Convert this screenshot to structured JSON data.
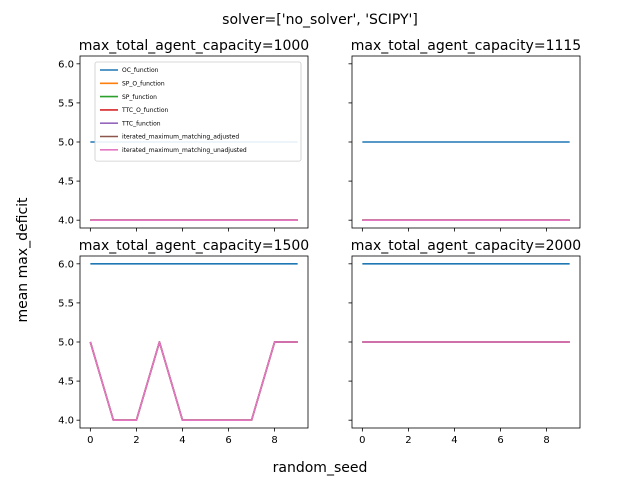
{
  "figure": {
    "suptitle": "solver=['no_solver', 'SCIPY']",
    "xlabel": "random_seed",
    "ylabel": "mean max_deficit"
  },
  "legend": {
    "placement": "upper-left of top-left panel",
    "entries": [
      {
        "name": "OC_function",
        "color": "#1f77b4"
      },
      {
        "name": "SP_O_function",
        "color": "#ff7f0e"
      },
      {
        "name": "SP_function",
        "color": "#2ca02c"
      },
      {
        "name": "TTC_O_function",
        "color": "#d62728"
      },
      {
        "name": "TTC_function",
        "color": "#9467bd"
      },
      {
        "name": "iterated_maximum_matching_adjusted",
        "color": "#8c564b"
      },
      {
        "name": "iterated_maximum_matching_unadjusted",
        "color": "#e377c2"
      }
    ]
  },
  "chart_data": [
    {
      "type": "line",
      "title": "max_total_agent_capacity=1000",
      "x": [
        0,
        1,
        2,
        3,
        4,
        5,
        6,
        7,
        8,
        9
      ],
      "xlim": [
        -0.45,
        9.45
      ],
      "ylim": [
        3.9,
        6.1
      ],
      "yticks": [
        4.0,
        4.5,
        5.0,
        5.5,
        6.0
      ],
      "ytick_labels": [
        "4.0",
        "4.5",
        "5.0",
        "5.5",
        "6.0"
      ],
      "xticks": [
        0,
        2,
        4,
        6,
        8
      ],
      "xtick_labels": [],
      "series": [
        {
          "name": "OC_function",
          "color": "#1f77b4",
          "values": [
            5,
            5,
            5,
            5,
            5,
            5,
            5,
            5,
            5,
            5
          ]
        },
        {
          "name": "SP_O_function",
          "color": "#ff7f0e",
          "values": [
            4,
            4,
            4,
            4,
            4,
            4,
            4,
            4,
            4,
            4
          ]
        },
        {
          "name": "SP_function",
          "color": "#2ca02c",
          "values": [
            4,
            4,
            4,
            4,
            4,
            4,
            4,
            4,
            4,
            4
          ]
        },
        {
          "name": "TTC_O_function",
          "color": "#d62728",
          "values": [
            4,
            4,
            4,
            4,
            4,
            4,
            4,
            4,
            4,
            4
          ]
        },
        {
          "name": "TTC_function",
          "color": "#9467bd",
          "values": [
            4,
            4,
            4,
            4,
            4,
            4,
            4,
            4,
            4,
            4
          ]
        },
        {
          "name": "iterated_maximum_matching_adjusted",
          "color": "#8c564b",
          "values": [
            4,
            4,
            4,
            4,
            4,
            4,
            4,
            4,
            4,
            4
          ]
        },
        {
          "name": "iterated_maximum_matching_unadjusted",
          "color": "#e377c2",
          "values": [
            4,
            4,
            4,
            4,
            4,
            4,
            4,
            4,
            4,
            4
          ]
        }
      ]
    },
    {
      "type": "line",
      "title": "max_total_agent_capacity=1115",
      "x": [
        0,
        1,
        2,
        3,
        4,
        5,
        6,
        7,
        8,
        9
      ],
      "xlim": [
        -0.45,
        9.45
      ],
      "ylim": [
        3.9,
        6.1
      ],
      "yticks": [
        4.0,
        4.5,
        5.0,
        5.5,
        6.0
      ],
      "ytick_labels": [],
      "xticks": [
        0,
        2,
        4,
        6,
        8
      ],
      "xtick_labels": [],
      "series": [
        {
          "name": "OC_function",
          "color": "#1f77b4",
          "values": [
            5,
            5,
            5,
            5,
            5,
            5,
            5,
            5,
            5,
            5
          ]
        },
        {
          "name": "SP_O_function",
          "color": "#ff7f0e",
          "values": [
            4,
            4,
            4,
            4,
            4,
            4,
            4,
            4,
            4,
            4
          ]
        },
        {
          "name": "SP_function",
          "color": "#2ca02c",
          "values": [
            4,
            4,
            4,
            4,
            4,
            4,
            4,
            4,
            4,
            4
          ]
        },
        {
          "name": "TTC_O_function",
          "color": "#d62728",
          "values": [
            4,
            4,
            4,
            4,
            4,
            4,
            4,
            4,
            4,
            4
          ]
        },
        {
          "name": "TTC_function",
          "color": "#9467bd",
          "values": [
            4,
            4,
            4,
            4,
            4,
            4,
            4,
            4,
            4,
            4
          ]
        },
        {
          "name": "iterated_maximum_matching_adjusted",
          "color": "#8c564b",
          "values": [
            4,
            4,
            4,
            4,
            4,
            4,
            4,
            4,
            4,
            4
          ]
        },
        {
          "name": "iterated_maximum_matching_unadjusted",
          "color": "#e377c2",
          "values": [
            4,
            4,
            4,
            4,
            4,
            4,
            4,
            4,
            4,
            4
          ]
        }
      ]
    },
    {
      "type": "line",
      "title": "max_total_agent_capacity=1500",
      "x": [
        0,
        1,
        2,
        3,
        4,
        5,
        6,
        7,
        8,
        9
      ],
      "xlim": [
        -0.45,
        9.45
      ],
      "ylim": [
        3.9,
        6.1
      ],
      "yticks": [
        4.0,
        4.5,
        5.0,
        5.5,
        6.0
      ],
      "ytick_labels": [
        "4.0",
        "4.5",
        "5.0",
        "5.5",
        "6.0"
      ],
      "xticks": [
        0,
        2,
        4,
        6,
        8
      ],
      "xtick_labels": [
        "0",
        "2",
        "4",
        "6",
        "8"
      ],
      "series": [
        {
          "name": "OC_function",
          "color": "#1f77b4",
          "values": [
            6,
            6,
            6,
            6,
            6,
            6,
            6,
            6,
            6,
            6
          ]
        },
        {
          "name": "SP_O_function",
          "color": "#ff7f0e",
          "values": [
            5,
            4,
            4,
            5,
            4,
            4,
            4,
            4,
            5,
            5
          ]
        },
        {
          "name": "SP_function",
          "color": "#2ca02c",
          "values": [
            5,
            4,
            4,
            5,
            4,
            4,
            4,
            4,
            5,
            5
          ]
        },
        {
          "name": "TTC_O_function",
          "color": "#d62728",
          "values": [
            5,
            4,
            4,
            5,
            4,
            4,
            4,
            4,
            5,
            5
          ]
        },
        {
          "name": "TTC_function",
          "color": "#9467bd",
          "values": [
            5,
            4,
            4,
            5,
            4,
            4,
            4,
            4,
            5,
            5
          ]
        },
        {
          "name": "iterated_maximum_matching_adjusted",
          "color": "#8c564b",
          "values": [
            5,
            4,
            4,
            5,
            4,
            4,
            4,
            4,
            5,
            5
          ]
        },
        {
          "name": "iterated_maximum_matching_unadjusted",
          "color": "#e377c2",
          "values": [
            5,
            4,
            4,
            5,
            4,
            4,
            4,
            4,
            5,
            5
          ]
        }
      ]
    },
    {
      "type": "line",
      "title": "max_total_agent_capacity=2000",
      "x": [
        0,
        1,
        2,
        3,
        4,
        5,
        6,
        7,
        8,
        9
      ],
      "xlim": [
        -0.45,
        9.45
      ],
      "ylim": [
        3.9,
        6.1
      ],
      "yticks": [
        4.0,
        4.5,
        5.0,
        5.5,
        6.0
      ],
      "ytick_labels": [],
      "xticks": [
        0,
        2,
        4,
        6,
        8
      ],
      "xtick_labels": [
        "0",
        "2",
        "4",
        "6",
        "8"
      ],
      "series": [
        {
          "name": "OC_function",
          "color": "#1f77b4",
          "values": [
            6,
            6,
            6,
            6,
            6,
            6,
            6,
            6,
            6,
            6
          ]
        },
        {
          "name": "SP_O_function",
          "color": "#ff7f0e",
          "values": [
            5,
            5,
            5,
            5,
            5,
            5,
            5,
            5,
            5,
            5
          ]
        },
        {
          "name": "SP_function",
          "color": "#2ca02c",
          "values": [
            5,
            5,
            5,
            5,
            5,
            5,
            5,
            5,
            5,
            5
          ]
        },
        {
          "name": "TTC_O_function",
          "color": "#d62728",
          "values": [
            5,
            5,
            5,
            5,
            5,
            5,
            5,
            5,
            5,
            5
          ]
        },
        {
          "name": "TTC_function",
          "color": "#9467bd",
          "values": [
            5,
            5,
            5,
            5,
            5,
            5,
            5,
            5,
            5,
            5
          ]
        },
        {
          "name": "iterated_maximum_matching_adjusted",
          "color": "#8c564b",
          "values": [
            5,
            5,
            5,
            5,
            5,
            5,
            5,
            5,
            5,
            5
          ]
        },
        {
          "name": "iterated_maximum_matching_unadjusted",
          "color": "#e377c2",
          "values": [
            5,
            5,
            5,
            5,
            5,
            5,
            5,
            5,
            5,
            5
          ]
        }
      ]
    }
  ]
}
